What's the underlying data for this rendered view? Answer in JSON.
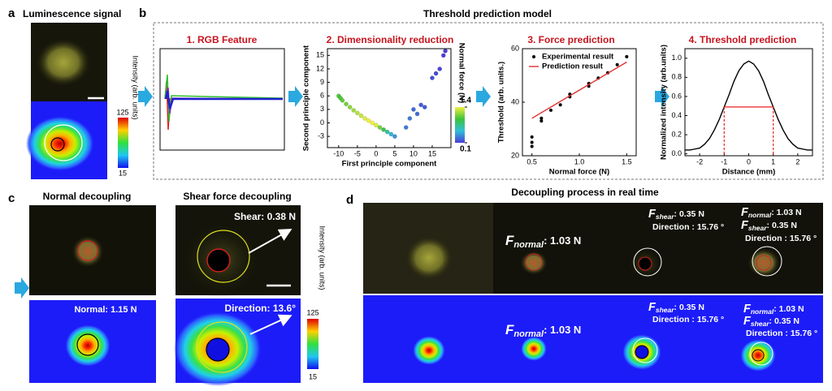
{
  "panels": {
    "a": {
      "letter": "a",
      "title": "Luminescence signal",
      "colorbar_label": "Intensity (arb. units)",
      "colorbar_max": 125,
      "colorbar_min": 15
    },
    "b": {
      "letter": "b",
      "title": "Threshold prediction model",
      "steps": [
        "1. RGB Feature",
        "2. Dimensionality reduction",
        "3. Force prediction",
        "4. Threshold prediction"
      ]
    },
    "c": {
      "letter": "c",
      "titles": [
        "Normal decoupling",
        "Shear force decoupling"
      ],
      "normal_label": "Normal: 1.15 N",
      "shear_label": "Shear: 0.38 N",
      "direction_label": "Direction: 13.6°",
      "colorbar_label": "Intensity (arb. units)",
      "colorbar_max": 125,
      "colorbar_min": 15
    },
    "d": {
      "letter": "d",
      "title": "Decoupling process in real time",
      "labels": [
        {
          "sym": "F",
          "sub": "normal",
          "text": ": 1.03  N"
        },
        {
          "sym": "F",
          "sub": "shear",
          "text": ": 0.35  N"
        },
        {
          "text": "Direction : 15.76 °"
        },
        {
          "sym": "F",
          "sub": "normal",
          "text": ": 1.03  N"
        },
        {
          "sym": "F",
          "sub": "shear",
          "text": ": 0.35  N"
        },
        {
          "text": "Direction : 15.76 °"
        },
        {
          "sym": "F",
          "sub": "normal",
          "text": ": 1.03  N"
        },
        {
          "sym": "F",
          "sub": "shear",
          "text": ": 0.35  N"
        },
        {
          "text": "Direction : 15.76 °"
        },
        {
          "sym": "F",
          "sub": "normal",
          "text": ": 1.03  N"
        },
        {
          "sym": "F",
          "sub": "shear",
          "text": ": 0.35  N"
        },
        {
          "text": "Direction : 15.76 °"
        }
      ]
    }
  },
  "chart_data": [
    {
      "type": "scatter",
      "xlabel": "First principle component",
      "ylabel": "Second principle component",
      "xlim": [
        -13,
        20
      ],
      "xticks": [
        -10,
        -5,
        0,
        5,
        10,
        15
      ],
      "ylim": [
        -5.5,
        16.5
      ],
      "yticks": [
        -3,
        0,
        3,
        6,
        9,
        12,
        15
      ],
      "x": [
        -10,
        -9.5,
        -9,
        -8,
        -7,
        -6,
        -5,
        -4,
        -3,
        -2,
        -1,
        0,
        1,
        2,
        3,
        4,
        5,
        8,
        9,
        10,
        11,
        12,
        13,
        15,
        16,
        17,
        18,
        18.5
      ],
      "values": [
        6,
        5.5,
        5,
        4.2,
        3.5,
        2.8,
        2.2,
        1.6,
        1,
        0.5,
        0,
        -0.5,
        -1,
        -1.5,
        -2,
        -2.5,
        -3,
        -1,
        1,
        3,
        2,
        4,
        3.5,
        10,
        11,
        12,
        15,
        16
      ],
      "color_values": [
        1.0,
        1.0,
        1.05,
        1.1,
        1.15,
        1.2,
        1.25,
        1.3,
        1.35,
        1.4,
        1.4,
        1.35,
        1.1,
        0.9,
        0.7,
        0.5,
        0.4,
        0.3,
        0.3,
        0.25,
        0.25,
        0.2,
        0.2,
        0.15,
        0.15,
        0.12,
        0.1,
        0.1
      ],
      "colorbar": {
        "label": "Normal force (N)",
        "lim": [
          0.1,
          1.4
        ],
        "ticks": [
          0.1,
          1.4
        ],
        "colors": [
          "#4a3ed8",
          "#30c0d8",
          "#3fc23a",
          "#f0f040"
        ]
      }
    },
    {
      "type": "line",
      "xlabel": "Normal force (N)",
      "ylabel": "Threshold (arb. units.)",
      "xlim": [
        0.4,
        1.6
      ],
      "xticks": [
        0.5,
        {
          "value": 1,
          "label": "1.0"
        },
        1.5
      ],
      "ylim": [
        20,
        60
      ],
      "yticks": [
        20,
        40,
        60
      ],
      "legend": "upper left",
      "series": [
        {
          "name": "Experimental result",
          "color": "#000000",
          "style": "markers",
          "x": [
            0.5,
            0.5,
            0.5,
            0.6,
            0.6,
            0.7,
            0.8,
            0.9,
            0.9,
            1.1,
            1.1,
            1.2,
            1.3,
            1.4,
            1.5
          ],
          "values": [
            27,
            23.5,
            25,
            33,
            34,
            37,
            39,
            42,
            43,
            46,
            47,
            49,
            51,
            54,
            57
          ]
        },
        {
          "name": "Prediction result",
          "color": "#e03030",
          "style": "line",
          "x": [
            0.5,
            1.5
          ],
          "values": [
            34,
            55
          ]
        }
      ]
    },
    {
      "type": "line",
      "xlabel": "Distance (mm)",
      "ylabel": "Normalized intensity (arb.units)",
      "xlim": [
        -2.6,
        2.6
      ],
      "xticks": [
        -2,
        -1,
        0,
        1,
        2
      ],
      "ylim": [
        -0.02,
        1.1
      ],
      "yticks": [
        {
          "value": 0,
          "label": "0.0"
        },
        0.2,
        0.4,
        0.6,
        0.8,
        {
          "value": 1,
          "label": "1.0"
        }
      ],
      "x": [
        -2.6,
        -2.4,
        -2.2,
        -2.0,
        -1.8,
        -1.6,
        -1.4,
        -1.2,
        -1.0,
        -0.8,
        -0.6,
        -0.4,
        -0.2,
        0,
        0.2,
        0.4,
        0.6,
        0.8,
        1.0,
        1.2,
        1.4,
        1.6,
        1.8,
        2.0,
        2.2,
        2.4,
        2.6
      ],
      "values": [
        0.04,
        0.04,
        0.05,
        0.06,
        0.1,
        0.16,
        0.25,
        0.36,
        0.49,
        0.62,
        0.76,
        0.87,
        0.94,
        0.97,
        0.94,
        0.87,
        0.76,
        0.62,
        0.49,
        0.36,
        0.25,
        0.16,
        0.1,
        0.06,
        0.05,
        0.04,
        0.04
      ],
      "color": "#000000",
      "threshold": {
        "y": 0.49,
        "x": [
          -1,
          1
        ],
        "color": "#e82020"
      }
    }
  ]
}
